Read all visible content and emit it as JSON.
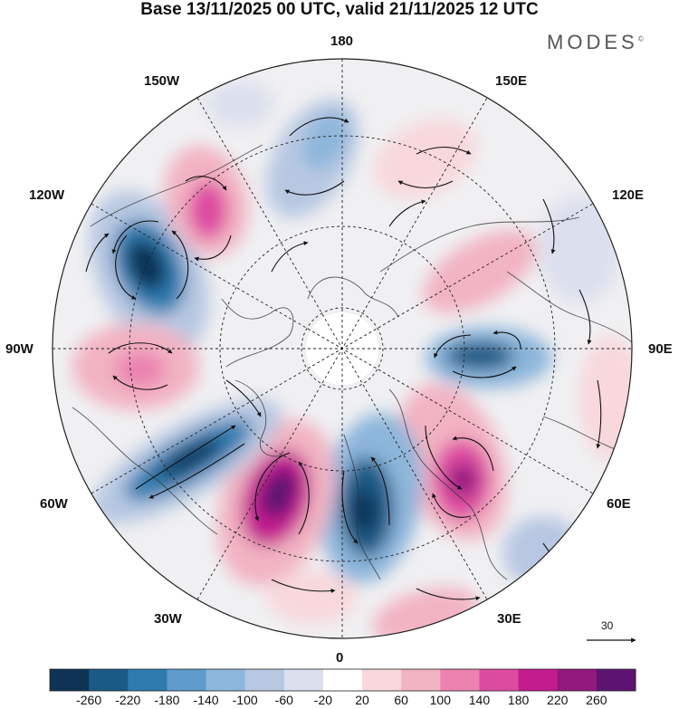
{
  "header": {
    "title": "Base 13/11/2025 00 UTC, valid 21/11/2025 12 UTC",
    "brand": "MODES",
    "brand_mark": "©"
  },
  "map": {
    "projection": "north-polar-stereographic",
    "longitude_labels": {
      "top": "180",
      "bottom": "0",
      "left": "90W",
      "right": "90E",
      "upper_left_1": "150W",
      "upper_left_2": "120W",
      "upper_right_1": "150E",
      "upper_right_2": "120E",
      "lower_left_1": "60W",
      "lower_left_2": "30W",
      "lower_right_1": "60E",
      "lower_right_2": "30E"
    },
    "reference_vector_value": "30",
    "anomaly_features": [
      {
        "sign": "negative",
        "value": -220,
        "region": "Gulf of Alaska / 120W-150W"
      },
      {
        "sign": "positive",
        "value": 180,
        "region": "near 150W"
      },
      {
        "sign": "negative",
        "value": -100,
        "region": "near 170W-180"
      },
      {
        "sign": "positive",
        "value": 100,
        "region": "Eastern Siberia / 150E"
      },
      {
        "sign": "positive",
        "value": 100,
        "region": "90W eastern North America"
      },
      {
        "sign": "negative",
        "value": -220,
        "region": "North Atlantic 60W"
      },
      {
        "sign": "positive",
        "value": 260,
        "region": "Atlantic 30W-40W"
      },
      {
        "sign": "negative",
        "value": -260,
        "region": "Western Europe 0-10W"
      },
      {
        "sign": "positive",
        "value": 260,
        "region": "Eastern Europe 30E-45E"
      },
      {
        "sign": "negative",
        "value": -220,
        "region": "Central Siberia 90E"
      },
      {
        "sign": "positive",
        "value": 100,
        "region": "Northern Siberia 110E"
      }
    ]
  },
  "colorbar": {
    "labels": [
      "-260",
      "-220",
      "-180",
      "-140",
      "-100",
      "-60",
      "-20",
      "20",
      "60",
      "100",
      "140",
      "180",
      "220",
      "260"
    ],
    "colors": [
      "#0e3355",
      "#1a5a86",
      "#2f7bb0",
      "#5d9ccb",
      "#8db6db",
      "#b8c8e2",
      "#dcdfee",
      "#ffffff",
      "#f8d8dc",
      "#f2b3c2",
      "#eb82b0",
      "#dd4ba1",
      "#c21c8f",
      "#93187e",
      "#5c1372"
    ]
  }
}
